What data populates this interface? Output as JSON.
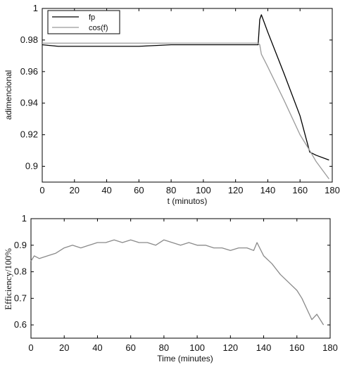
{
  "chart_data": [
    {
      "type": "line",
      "xlabel": "t (minutos)",
      "ylabel": "adimencional",
      "xlim": [
        0,
        180
      ],
      "ylim": [
        0.89,
        1.0
      ],
      "xticks": [
        0,
        20,
        40,
        60,
        80,
        100,
        120,
        140,
        160,
        180
      ],
      "yticks": [
        0.9,
        0.92,
        0.94,
        0.96,
        0.98,
        1
      ],
      "ytick_labels": [
        "0.9",
        "0.92",
        "0.94",
        "0.96",
        "0.98",
        "1"
      ],
      "legend_position": "top-left",
      "series": [
        {
          "name": "fp",
          "color": "#000000",
          "x": [
            0,
            10,
            20,
            40,
            60,
            80,
            100,
            120,
            134,
            135,
            136,
            140,
            150,
            160,
            166,
            170,
            178
          ],
          "y": [
            0.977,
            0.976,
            0.976,
            0.976,
            0.976,
            0.977,
            0.977,
            0.977,
            0.977,
            0.993,
            0.996,
            0.985,
            0.959,
            0.932,
            0.909,
            0.907,
            0.904
          ]
        },
        {
          "name": "cos(f)",
          "color": "#9a9a9a",
          "x": [
            0,
            10,
            20,
            40,
            60,
            80,
            100,
            120,
            134,
            135,
            136,
            140,
            150,
            160,
            166,
            170,
            178
          ],
          "y": [
            0.978,
            0.978,
            0.978,
            0.978,
            0.978,
            0.978,
            0.978,
            0.978,
            0.978,
            0.977,
            0.971,
            0.963,
            0.942,
            0.92,
            0.91,
            0.903,
            0.892
          ]
        }
      ]
    },
    {
      "type": "line",
      "xlabel": "Time (minutes)",
      "ylabel": "Efficiency/100%",
      "xlim": [
        0,
        180
      ],
      "ylim": [
        0.55,
        1.0
      ],
      "xticks": [
        0,
        20,
        40,
        60,
        80,
        100,
        120,
        140,
        160,
        180
      ],
      "yticks": [
        0.6,
        0.7,
        0.8,
        0.9,
        1
      ],
      "ytick_labels": [
        "0.6",
        "0.7",
        "0.8",
        "0.9",
        "1"
      ],
      "series": [
        {
          "color": "#8a8a8a",
          "x": [
            0,
            2,
            5,
            10,
            15,
            20,
            25,
            30,
            35,
            40,
            45,
            50,
            55,
            60,
            65,
            70,
            75,
            80,
            85,
            90,
            95,
            100,
            105,
            110,
            115,
            120,
            125,
            130,
            134,
            136,
            140,
            145,
            150,
            155,
            160,
            163,
            166,
            169,
            172,
            176
          ],
          "y": [
            0.84,
            0.86,
            0.85,
            0.86,
            0.87,
            0.89,
            0.9,
            0.89,
            0.9,
            0.91,
            0.91,
            0.92,
            0.91,
            0.92,
            0.91,
            0.91,
            0.9,
            0.92,
            0.91,
            0.9,
            0.91,
            0.9,
            0.9,
            0.89,
            0.89,
            0.88,
            0.89,
            0.89,
            0.88,
            0.91,
            0.86,
            0.83,
            0.79,
            0.76,
            0.73,
            0.7,
            0.66,
            0.62,
            0.64,
            0.6
          ]
        }
      ]
    }
  ]
}
